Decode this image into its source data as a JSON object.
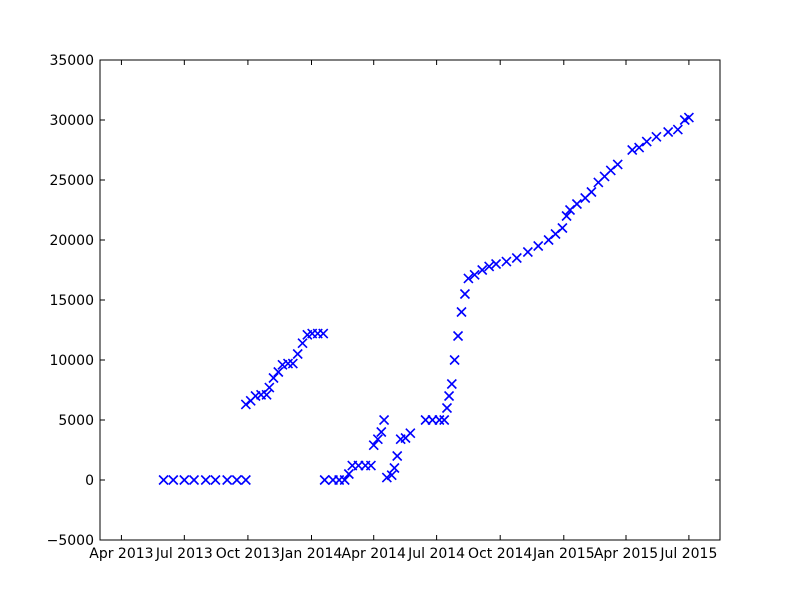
{
  "chart_data": {
    "type": "scatter",
    "title": "",
    "xlabel": "",
    "ylabel": "",
    "grid": false,
    "marker": "x",
    "marker_color": "#0000ff",
    "xlim": [
      "2013-03-01",
      "2015-08-15"
    ],
    "ylim": [
      -5000,
      35000
    ],
    "x_ticks": [
      {
        "date": "2013-04-01",
        "label": "Apr 2013"
      },
      {
        "date": "2013-07-01",
        "label": "Jul 2013"
      },
      {
        "date": "2013-10-01",
        "label": "Oct 2013"
      },
      {
        "date": "2014-01-01",
        "label": "Jan 2014"
      },
      {
        "date": "2014-04-01",
        "label": "Apr 2014"
      },
      {
        "date": "2014-07-01",
        "label": "Jul 2014"
      },
      {
        "date": "2014-10-01",
        "label": "Oct 2014"
      },
      {
        "date": "2015-01-01",
        "label": "Jan 2015"
      },
      {
        "date": "2015-04-01",
        "label": "Apr 2015"
      },
      {
        "date": "2015-07-01",
        "label": "Jul 2015"
      }
    ],
    "y_ticks": [
      {
        "value": 35000,
        "label": "35000"
      },
      {
        "value": 30000,
        "label": "30000"
      },
      {
        "value": 25000,
        "label": "25000"
      },
      {
        "value": 20000,
        "label": "20000"
      },
      {
        "value": 15000,
        "label": "15000"
      },
      {
        "value": 10000,
        "label": "10000"
      },
      {
        "value": 5000,
        "label": "5000"
      },
      {
        "value": 0,
        "label": "0"
      },
      {
        "value": -5000,
        "label": "−5000"
      }
    ],
    "series": [
      {
        "values": [
          [
            "2013-06-01",
            0
          ],
          [
            "2013-06-15",
            0
          ],
          [
            "2013-07-01",
            0
          ],
          [
            "2013-07-15",
            0
          ],
          [
            "2013-08-01",
            0
          ],
          [
            "2013-08-15",
            0
          ],
          [
            "2013-09-01",
            0
          ],
          [
            "2013-09-15",
            0
          ],
          [
            "2013-09-28",
            0
          ],
          [
            "2013-09-28",
            6300
          ],
          [
            "2013-10-05",
            6600
          ],
          [
            "2013-10-12",
            7000
          ],
          [
            "2013-10-20",
            7100
          ],
          [
            "2013-10-28",
            7100
          ],
          [
            "2013-11-01",
            7700
          ],
          [
            "2013-11-07",
            8500
          ],
          [
            "2013-11-14",
            9000
          ],
          [
            "2013-11-20",
            9600
          ],
          [
            "2013-11-28",
            9700
          ],
          [
            "2013-12-05",
            9700
          ],
          [
            "2013-12-12",
            10500
          ],
          [
            "2013-12-19",
            11400
          ],
          [
            "2013-12-26",
            12100
          ],
          [
            "2014-01-02",
            12200
          ],
          [
            "2014-01-10",
            12200
          ],
          [
            "2014-01-18",
            12200
          ],
          [
            "2014-01-20",
            0
          ],
          [
            "2014-02-01",
            0
          ],
          [
            "2014-02-10",
            0
          ],
          [
            "2014-02-18",
            0
          ],
          [
            "2014-02-24",
            500
          ],
          [
            "2014-03-01",
            1200
          ],
          [
            "2014-03-10",
            1200
          ],
          [
            "2014-03-20",
            1200
          ],
          [
            "2014-03-28",
            1200
          ],
          [
            "2014-04-01",
            2900
          ],
          [
            "2014-04-07",
            3400
          ],
          [
            "2014-04-12",
            4000
          ],
          [
            "2014-04-16",
            5000
          ],
          [
            "2014-04-20",
            200
          ],
          [
            "2014-04-27",
            400
          ],
          [
            "2014-05-01",
            1000
          ],
          [
            "2014-05-05",
            2000
          ],
          [
            "2014-05-10",
            3400
          ],
          [
            "2014-05-17",
            3500
          ],
          [
            "2014-05-24",
            3900
          ],
          [
            "2014-06-15",
            5000
          ],
          [
            "2014-06-25",
            5000
          ],
          [
            "2014-07-05",
            5000
          ],
          [
            "2014-07-12",
            5000
          ],
          [
            "2014-07-16",
            6000
          ],
          [
            "2014-07-19",
            7000
          ],
          [
            "2014-07-23",
            8000
          ],
          [
            "2014-07-27",
            10000
          ],
          [
            "2014-08-01",
            12000
          ],
          [
            "2014-08-06",
            14000
          ],
          [
            "2014-08-11",
            15500
          ],
          [
            "2014-08-16",
            16800
          ],
          [
            "2014-08-25",
            17100
          ],
          [
            "2014-09-05",
            17500
          ],
          [
            "2014-09-15",
            17800
          ],
          [
            "2014-09-25",
            18000
          ],
          [
            "2014-10-10",
            18200
          ],
          [
            "2014-10-25",
            18500
          ],
          [
            "2014-11-10",
            19000
          ],
          [
            "2014-11-25",
            19500
          ],
          [
            "2014-12-10",
            20000
          ],
          [
            "2014-12-20",
            20500
          ],
          [
            "2014-12-30",
            21000
          ],
          [
            "2015-01-05",
            22000
          ],
          [
            "2015-01-10",
            22500
          ],
          [
            "2015-01-20",
            23000
          ],
          [
            "2015-02-01",
            23500
          ],
          [
            "2015-02-10",
            24000
          ],
          [
            "2015-02-20",
            24800
          ],
          [
            "2015-03-01",
            25300
          ],
          [
            "2015-03-10",
            25800
          ],
          [
            "2015-03-20",
            26300
          ],
          [
            "2015-04-10",
            27500
          ],
          [
            "2015-04-20",
            27700
          ],
          [
            "2015-05-01",
            28200
          ],
          [
            "2015-05-15",
            28600
          ],
          [
            "2015-06-01",
            29000
          ],
          [
            "2015-06-15",
            29200
          ],
          [
            "2015-06-25",
            30000
          ],
          [
            "2015-07-01",
            30200
          ]
        ]
      }
    ]
  }
}
